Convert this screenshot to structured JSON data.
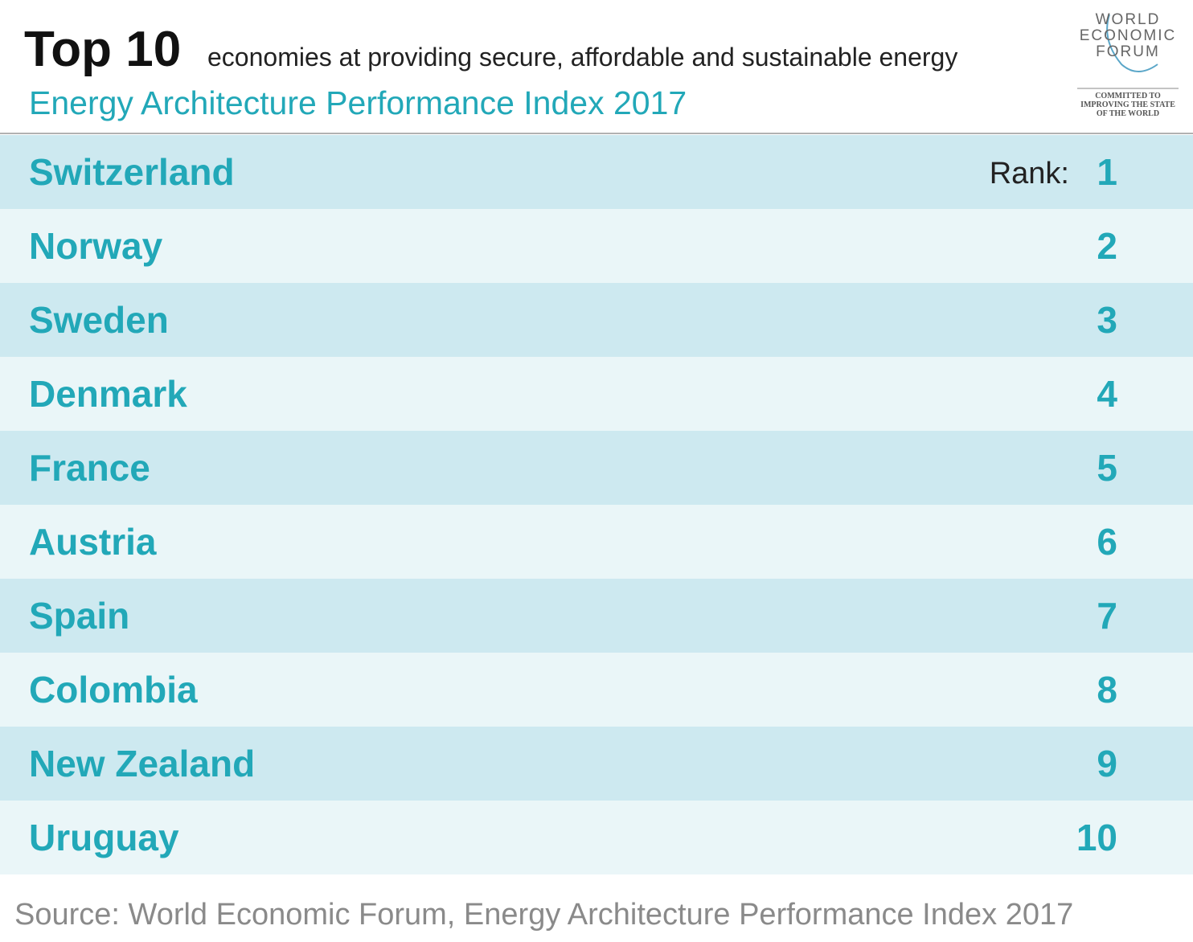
{
  "header": {
    "title": "Top 10",
    "subtitle": "economies at providing secure, affordable and sustainable energy",
    "index": "Energy Architecture Performance Index 2017"
  },
  "logo": {
    "lines": [
      "WORLD",
      "ECONOMIC",
      "FORUM"
    ],
    "tagline": [
      "COMMITTED TO",
      "IMPROVING THE STATE",
      "OF THE WORLD"
    ]
  },
  "table": {
    "rank_label": "Rank:",
    "rows": [
      {
        "country": "Switzerland",
        "rank": 1
      },
      {
        "country": "Norway",
        "rank": 2
      },
      {
        "country": "Sweden",
        "rank": 3
      },
      {
        "country": "Denmark",
        "rank": 4
      },
      {
        "country": "France",
        "rank": 5
      },
      {
        "country": "Austria",
        "rank": 6
      },
      {
        "country": "Spain",
        "rank": 7
      },
      {
        "country": "Colombia",
        "rank": 8
      },
      {
        "country": "New Zealand",
        "rank": 9
      },
      {
        "country": "Uruguay",
        "rank": 10
      }
    ]
  },
  "source": "Source: World Economic Forum, Energy Architecture Performance Index 2017"
}
